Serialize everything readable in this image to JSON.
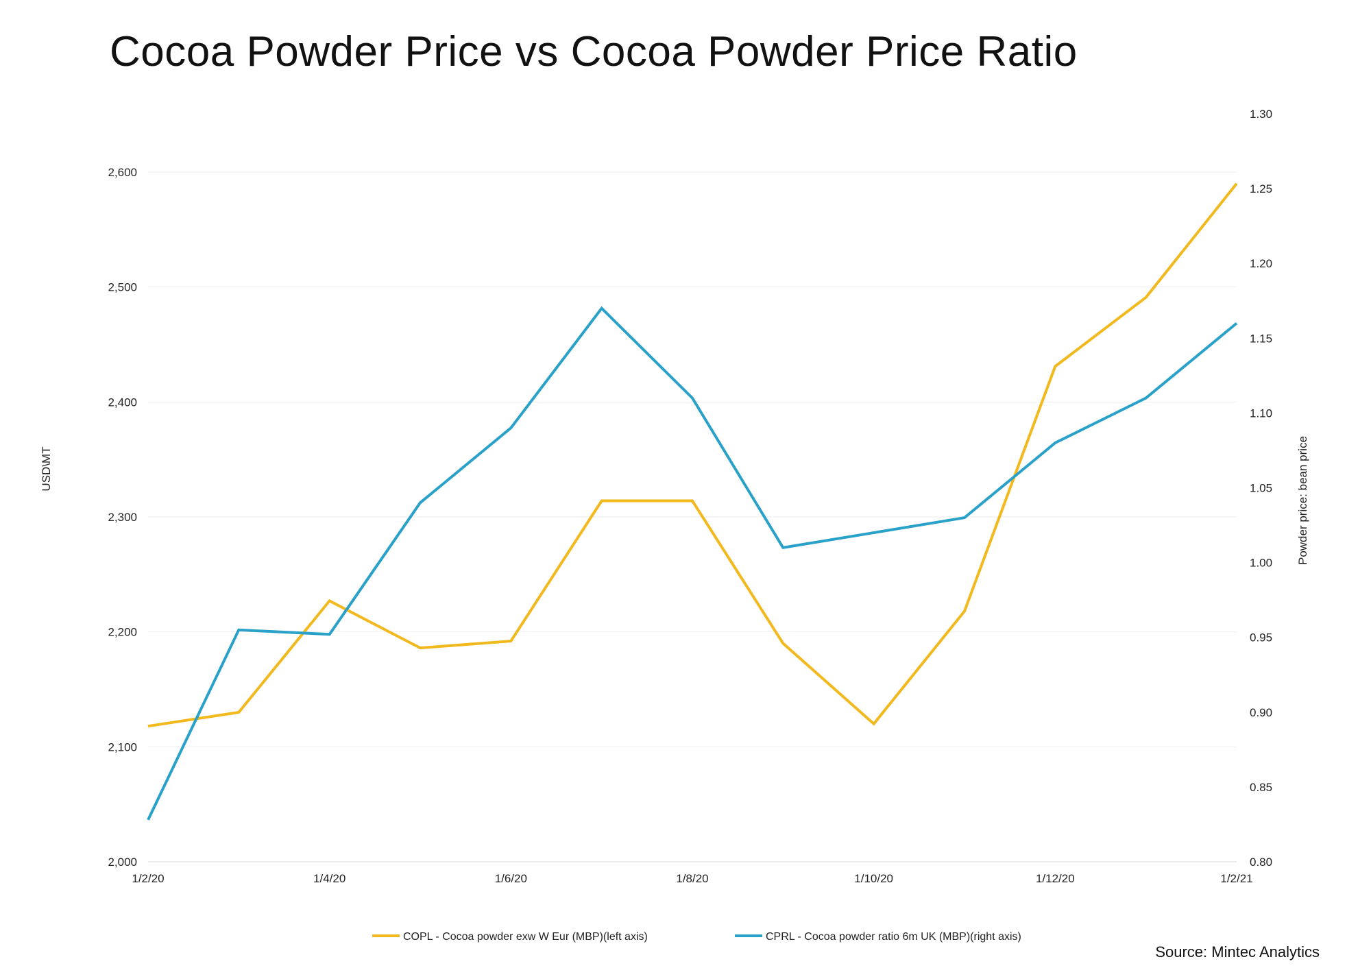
{
  "title": "Cocoa Powder Price vs Cocoa Powder Price Ratio",
  "source": "Source: Mintec Analytics",
  "chart_data": {
    "type": "line",
    "title": "Cocoa Powder Price vs Cocoa Powder Price Ratio",
    "x": [
      "1/2/20",
      "1/3/20",
      "1/4/20",
      "1/5/20",
      "1/6/20",
      "1/7/20",
      "1/8/20",
      "1/9/20",
      "1/10/20",
      "1/11/20",
      "1/12/20",
      "1/1/21",
      "1/2/21"
    ],
    "x_tick_labels": [
      "1/2/20",
      "1/4/20",
      "1/6/20",
      "1/8/20",
      "1/10/20",
      "1/12/20",
      "1/2/21"
    ],
    "y_left": {
      "label": "USD\\MT",
      "range": [
        2000,
        2600
      ],
      "ticks": [
        "2,000",
        "2,100",
        "2,200",
        "2,300",
        "2,400",
        "2,500",
        "2,600"
      ],
      "tick_values": [
        2000,
        2100,
        2200,
        2300,
        2400,
        2500,
        2600
      ]
    },
    "y_right": {
      "label": "Powder price: bean price",
      "range": [
        0.8,
        1.3
      ],
      "ticks": [
        "0.80",
        "0.85",
        "0.90",
        "0.95",
        "1.00",
        "1.05",
        "1.10",
        "1.15",
        "1.20",
        "1.25",
        "1.30"
      ],
      "tick_values": [
        0.8,
        0.85,
        0.9,
        0.95,
        1.0,
        1.05,
        1.1,
        1.15,
        1.2,
        1.25,
        1.3
      ]
    },
    "series": [
      {
        "name": "COPL - Cocoa powder exw W Eur (MBP)(left axis)",
        "axis": "left",
        "color": "#F2B91E",
        "values": [
          2118,
          2130,
          2227,
          2186,
          2192,
          2314,
          2314,
          2190,
          2120,
          2218,
          2431,
          2491,
          2590
        ]
      },
      {
        "name": "CPRL - Cocoa powder ratio 6m UK (MBP)(right axis)",
        "axis": "right",
        "color": "#2AA1C9",
        "values": [
          0.828,
          0.955,
          0.952,
          1.04,
          1.09,
          1.17,
          1.11,
          1.01,
          1.02,
          1.03,
          1.08,
          1.11,
          1.16
        ]
      }
    ],
    "grid": true,
    "legend_position": "bottom"
  }
}
